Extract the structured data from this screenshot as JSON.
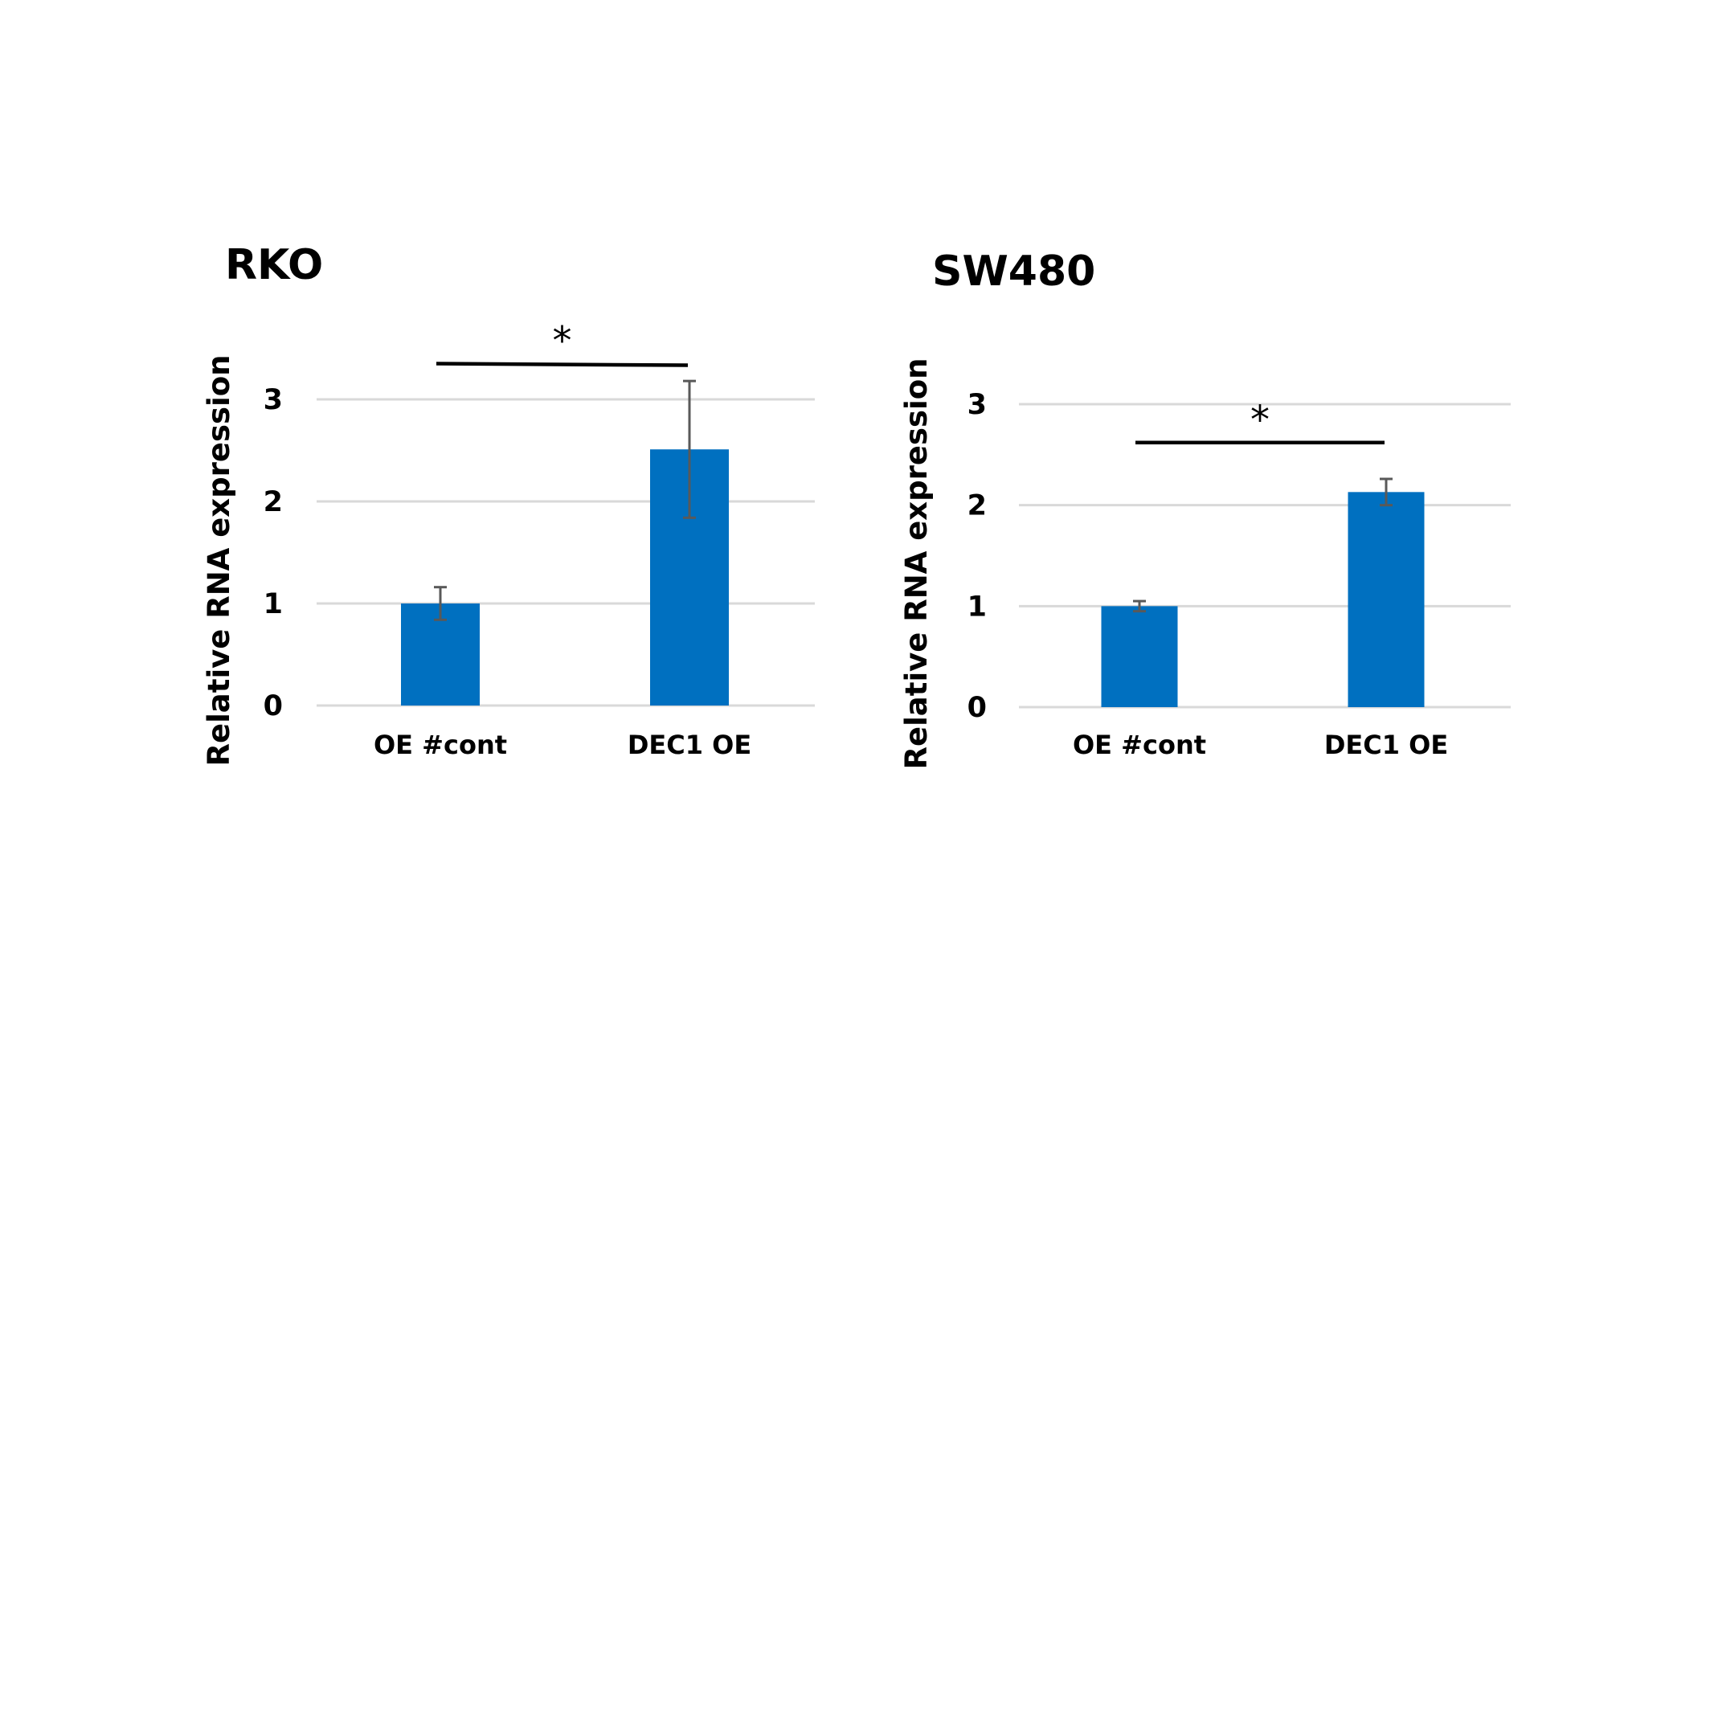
{
  "chart_data": [
    {
      "type": "bar",
      "title": "RKO",
      "ylabel": "Relative RNA expression",
      "xlabel": "",
      "categories": [
        "OE #cont",
        "DEC1 OE"
      ],
      "values": [
        1.0,
        2.51
      ],
      "error": [
        0.16,
        0.67
      ],
      "ylim": [
        0,
        3
      ],
      "yticks": [
        "0",
        "1",
        "2",
        "3"
      ],
      "grid": true,
      "bar_color": "#0070c0",
      "significance": {
        "between": [
          "OE #cont",
          "DEC1 OE"
        ],
        "label": "*",
        "level": 3.35
      }
    },
    {
      "type": "bar",
      "title": "SW480",
      "ylabel": "Relative RNA expression",
      "xlabel": "",
      "categories": [
        "OE #cont",
        "DEC1 OE"
      ],
      "values": [
        1.0,
        2.13
      ],
      "error": [
        0.05,
        0.13
      ],
      "ylim": [
        0,
        3
      ],
      "yticks": [
        "0",
        "1",
        "2",
        "3"
      ],
      "grid": true,
      "bar_color": "#0070c0",
      "significance": {
        "between": [
          "OE #cont",
          "DEC1 OE"
        ],
        "label": "*",
        "level": 2.62
      }
    }
  ]
}
